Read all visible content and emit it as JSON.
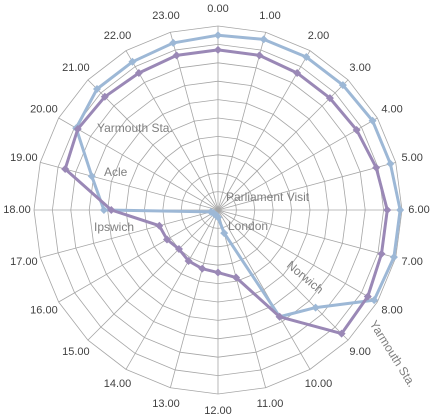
{
  "chart_data": {
    "type": "radar",
    "categories": [
      "0.00",
      "1.00",
      "2.00",
      "3.00",
      "4.00",
      "5.00",
      "6.00",
      "7.00",
      "8.00",
      "9.00",
      "10.00",
      "11.00",
      "12.00",
      "13.00",
      "14.00",
      "15.00",
      "16.00",
      "17.00",
      "18.00",
      "19.00",
      "20.00",
      "21.00",
      "22.00",
      "23.00"
    ],
    "series": [
      {
        "color": "#9db8d6",
        "values": [
          9.5,
          9.6,
          9.6,
          9.6,
          9.7,
          9.7,
          9.9,
          9.9,
          9.8,
          7.5,
          6.7,
          1.3,
          0.4,
          0.3,
          0.3,
          0.3,
          0.3,
          0.4,
          6.2,
          7.1,
          8.9,
          9.3,
          9.3,
          9.4
        ]
      },
      {
        "color": "#9a88b6",
        "values": [
          8.7,
          8.7,
          8.6,
          8.6,
          8.7,
          8.9,
          9.2,
          9.2,
          9.4,
          9.5,
          6.7,
          3.8,
          3.4,
          3.3,
          3.2,
          3.0,
          3.2,
          3.3,
          5.8,
          8.6,
          8.8,
          8.7,
          8.6,
          8.7
        ]
      }
    ],
    "ylim": [
      0,
      10
    ],
    "grid_rings": [
      1,
      2,
      3,
      4,
      5,
      6,
      7,
      8,
      9,
      10
    ],
    "annotations": [
      "Parliament Visit",
      "London",
      "Norwich",
      "Yarmouth Sta.",
      "Ipswich",
      "Acle",
      "Yarmouth Sta."
    ]
  }
}
